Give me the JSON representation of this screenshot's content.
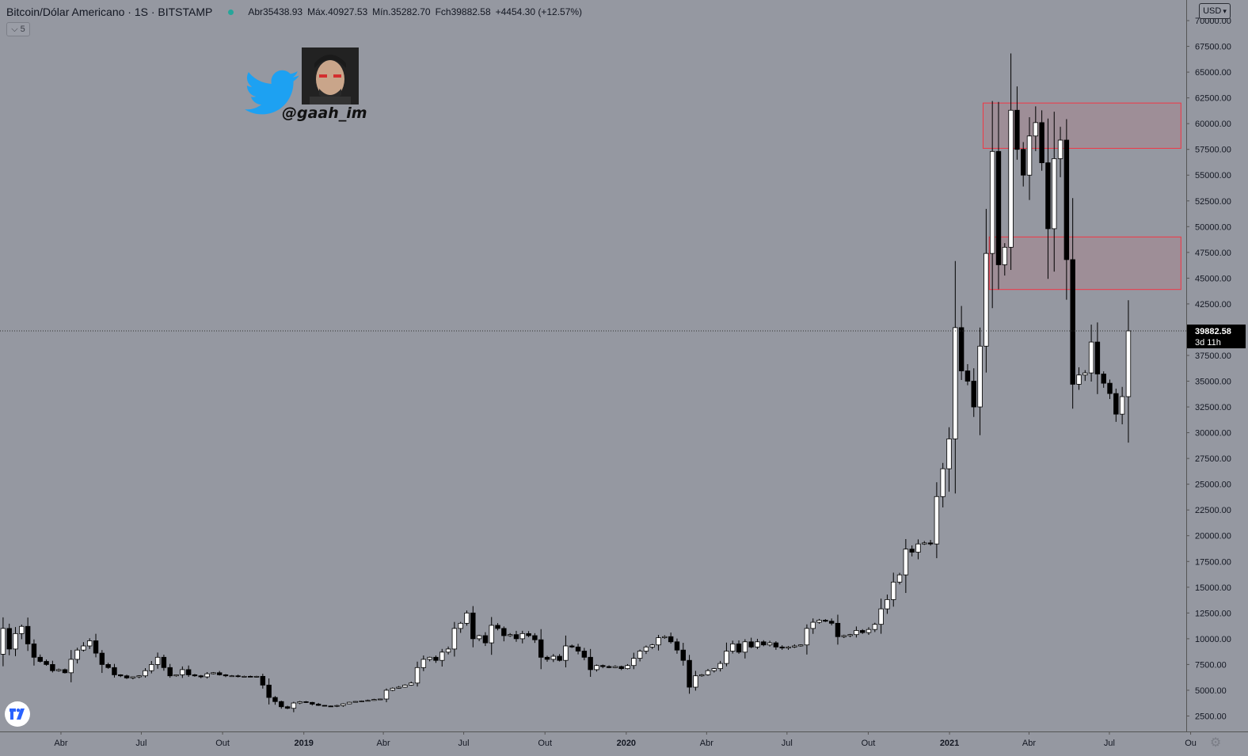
{
  "header": {
    "title": "Bitcoin/Dólar Americano · 1S · BITSTAMP",
    "open": "Abr35438.93",
    "high": "Máx.40927.53",
    "low": "Mín.35282.70",
    "close": "Fch39882.58",
    "change": "+4454.30 (+12.57%)"
  },
  "collapse_button": {
    "label": "5",
    "icon": "chevron-down-icon"
  },
  "currency_button": {
    "label": "USD"
  },
  "watermark": {
    "handle": "@gaah_im",
    "icon": "twitter-bird-icon"
  },
  "colors": {
    "background": "#9598a1",
    "up_body": "#ffffff",
    "down_body": "#000000",
    "wick": "#000000",
    "zone_border": "#f23645",
    "zone_fill": "rgba(242,54,69,0.10)",
    "price_label_bg": "#000000",
    "twitter_blue": "#1da1f2"
  },
  "chart_data": {
    "type": "candlestick",
    "symbol": "Bitcoin/Dólar Americano",
    "interval": "1S",
    "exchange": "BITSTAMP",
    "yaxis": {
      "range": [
        1000,
        72000
      ],
      "ticks": [
        2500,
        5000,
        7500,
        10000,
        12500,
        15000,
        17500,
        20000,
        22500,
        25000,
        27500,
        30000,
        32500,
        35000,
        37500,
        40000,
        42500,
        45000,
        47500,
        50000,
        52500,
        55000,
        57500,
        60000,
        62500,
        65000,
        67500,
        70000
      ],
      "tick_labels": [
        "2500.00",
        "5000.00",
        "7500.00",
        "10000.00",
        "12500.00",
        "15000.00",
        "17500.00",
        "20000.00",
        "22500.00",
        "25000.00",
        "27500.00",
        "30000.00",
        "32500.00",
        "35000.00",
        "37500.00",
        "40000.00",
        "42500.00",
        "45000.00",
        "47500.00",
        "50000.00",
        "52500.00",
        "55000.00",
        "57500.00",
        "60000.00",
        "62500.00",
        "65000.00",
        "67500.00",
        "70000.00"
      ]
    },
    "xaxis": {
      "range": [
        "2018-01-22",
        "2021-09-26"
      ],
      "ticks": [
        "2018-04-01",
        "2018-07-01",
        "2018-10-01",
        "2019-01-01",
        "2019-04-01",
        "2019-07-01",
        "2019-10-01",
        "2020-01-01",
        "2020-04-01",
        "2020-07-01",
        "2020-10-01",
        "2021-01-01",
        "2021-04-01",
        "2021-07-01",
        "2021-10-01"
      ],
      "tick_labels": [
        "Abr",
        "Jul",
        "Out",
        "2019",
        "Abr",
        "Jul",
        "Out",
        "2020",
        "Abr",
        "Jul",
        "Out",
        "2021",
        "Abr",
        "Jul",
        "Ou"
      ],
      "bold_labels": [
        "2019",
        "2020",
        "2021"
      ]
    },
    "last_price": {
      "value": 39882.58,
      "label": "39882.58",
      "countdown": "3d 11h"
    },
    "zones": [
      {
        "start": "2021-02-08",
        "end": "2021-09-20",
        "low": 57600,
        "high": 62000
      },
      {
        "start": "2021-02-15",
        "end": "2021-09-20",
        "low": 43900,
        "high": 49000
      }
    ],
    "segments": [
      {
        "from": "2018-01-22",
        "to": "2018-02-19",
        "points": [
          8500,
          11000,
          9000,
          10500,
          11200
        ]
      },
      {
        "from": "2018-02-19",
        "to": "2018-04-09",
        "points": [
          11200,
          9500,
          8200,
          7800,
          7500,
          6900,
          7000,
          6700
        ]
      },
      {
        "from": "2018-04-09",
        "to": "2018-05-14",
        "points": [
          6700,
          8000,
          8900,
          9300,
          9800,
          8600
        ]
      },
      {
        "from": "2018-05-14",
        "to": "2018-07-02",
        "points": [
          8600,
          7500,
          7200,
          6500,
          6400,
          6200,
          6300,
          6400
        ]
      },
      {
        "from": "2018-07-02",
        "to": "2018-07-23",
        "points": [
          6400,
          6900,
          7500,
          8200
        ]
      },
      {
        "from": "2018-07-23",
        "to": "2018-09-10",
        "points": [
          8200,
          7200,
          6400,
          6500,
          7000,
          6500,
          6400,
          6300
        ]
      },
      {
        "from": "2018-09-10",
        "to": "2018-11-12",
        "points": [
          6300,
          6600,
          6700,
          6500,
          6400,
          6400,
          6350,
          6350,
          6300,
          6350
        ]
      },
      {
        "from": "2018-11-12",
        "to": "2018-12-17",
        "points": [
          6350,
          5500,
          4300,
          3900,
          3400,
          3250
        ]
      },
      {
        "from": "2018-12-17",
        "to": "2019-04-01",
        "points": [
          3250,
          3800,
          3900,
          3800,
          3600,
          3500,
          3450,
          3450,
          3600,
          3800,
          3900,
          3950,
          4000,
          4100,
          4150
        ]
      },
      {
        "from": "2019-04-01",
        "to": "2019-06-24",
        "points": [
          4150,
          5000,
          5200,
          5300,
          5500,
          5700,
          7200,
          8000,
          8200,
          7900,
          8700,
          9000,
          11000
        ]
      },
      {
        "from": "2019-06-24",
        "to": "2019-07-29",
        "points": [
          11000,
          11500,
          12500,
          10000,
          10300,
          9600
        ]
      },
      {
        "from": "2019-07-29",
        "to": "2019-09-16",
        "points": [
          9600,
          11300,
          11000,
          10300,
          10400,
          10000,
          10500,
          10300
        ]
      },
      {
        "from": "2019-09-16",
        "to": "2019-11-25",
        "points": [
          10300,
          9900,
          8200,
          8000,
          8300,
          7900,
          9300,
          9200,
          8800,
          8200,
          7000
        ]
      },
      {
        "from": "2019-11-25",
        "to": "2020-02-10",
        "points": [
          7000,
          7400,
          7300,
          7200,
          7300,
          7100,
          7400,
          8100,
          8800,
          9200,
          9400,
          10100
        ]
      },
      {
        "from": "2020-02-10",
        "to": "2020-03-16",
        "points": [
          10100,
          10200,
          9700,
          8900,
          7900,
          5300
        ]
      },
      {
        "from": "2020-03-16",
        "to": "2020-05-11",
        "points": [
          5300,
          6400,
          6500,
          6900,
          7100,
          7600,
          8800,
          9500,
          8700
        ]
      },
      {
        "from": "2020-05-11",
        "to": "2020-07-20",
        "points": [
          8700,
          9700,
          9200,
          9700,
          9400,
          9600,
          9200,
          9100,
          9200,
          9300,
          9400
        ]
      },
      {
        "from": "2020-07-20",
        "to": "2020-09-07",
        "points": [
          9400,
          11000,
          11600,
          11800,
          11700,
          11500,
          10200,
          10300
        ]
      },
      {
        "from": "2020-09-07",
        "to": "2020-10-05",
        "points": [
          10300,
          10400,
          10800,
          10600,
          10900
        ]
      },
      {
        "from": "2020-10-05",
        "to": "2020-12-14",
        "points": [
          10900,
          11400,
          12900,
          13800,
          15500,
          16200,
          18700,
          18400,
          19200,
          19300,
          19200
        ]
      },
      {
        "from": "2020-12-14",
        "to": "2021-01-25",
        "points": [
          19200,
          23800,
          26500,
          29400,
          40200,
          36000,
          35000
        ]
      },
      {
        "from": "2021-01-25",
        "to": "2021-02-15",
        "points": [
          35000,
          32500,
          38400,
          47400
        ]
      },
      {
        "from": "2021-02-15",
        "to": "2021-03-15",
        "points": [
          47400,
          57300,
          46300,
          48000,
          61300
        ]
      },
      {
        "from": "2021-03-15",
        "to": "2021-04-12",
        "points": [
          61300,
          57500,
          55000,
          58800,
          60100
        ]
      },
      {
        "from": "2021-04-12",
        "to": "2021-05-10",
        "points": [
          60100,
          56200,
          49800,
          56600,
          58400
        ]
      },
      {
        "from": "2021-05-10",
        "to": "2021-05-31",
        "points": [
          58400,
          46800,
          34700,
          35600
        ]
      },
      {
        "from": "2021-05-31",
        "to": "2021-07-19",
        "points": [
          35600,
          35800,
          38800,
          35700,
          34800,
          33800,
          31800,
          33500
        ]
      },
      {
        "from": "2021-07-19",
        "to": "2021-07-26",
        "points": [
          33500,
          35438.93,
          39882.58
        ]
      }
    ],
    "candles_partial_note": ""
  }
}
